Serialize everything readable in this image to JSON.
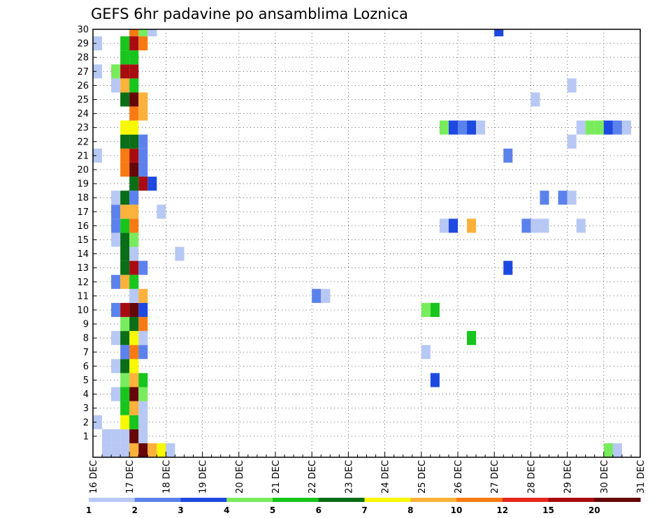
{
  "chart_data": {
    "type": "heatmap",
    "title": "GEFS 6hr padavine po ansamblima Loznica",
    "xlabel": "",
    "ylabel": "",
    "x_ticks": [
      "16 DEC",
      "17 DEC",
      "18 DEC",
      "19 DEC",
      "20 DEC",
      "21 DEC",
      "22 DEC",
      "23 DEC",
      "24 DEC",
      "25 DEC",
      "26 DEC",
      "27 DEC",
      "28 DEC",
      "29 DEC",
      "30 DEC",
      "31 DEC"
    ],
    "x_range": [
      "16 DEC 00Z",
      "31 DEC 00Z"
    ],
    "time_step_hours": 6,
    "y_ticks": [
      "1",
      "2",
      "3",
      "4",
      "5",
      "6",
      "7",
      "8",
      "9",
      "10",
      "11",
      "12",
      "13",
      "14",
      "15",
      "16",
      "17",
      "18",
      "19",
      "20",
      "21",
      "22",
      "23",
      "24",
      "25",
      "26",
      "27",
      "28",
      "29",
      "30"
    ],
    "y_range": [
      0,
      30
    ],
    "grid": true,
    "grid_style": "dotted",
    "colorbar": {
      "position": "bottom",
      "labels": [
        "1",
        "2",
        "3",
        "4",
        "5",
        "6",
        "7",
        "8",
        "10",
        "12",
        "15",
        "20"
      ],
      "colors": [
        "#b7c8f5",
        "#5b82ec",
        "#1e49e0",
        "#79ec5d",
        "#17c51c",
        "#0a6e16",
        "#f8f800",
        "#fbb13a",
        "#f87a13",
        "#e5271a",
        "#a80c10",
        "#650607"
      ]
    },
    "cells": [
      {
        "t": 1,
        "m": 0,
        "v": 1.5
      },
      {
        "t": 2,
        "m": 0,
        "v": 1.5
      },
      {
        "t": 3,
        "m": 0,
        "v": 1.5
      },
      {
        "t": 4,
        "m": 0,
        "v": 9
      },
      {
        "t": 5,
        "m": 0,
        "v": 30
      },
      {
        "t": 6,
        "m": 0,
        "v": 9
      },
      {
        "t": 7,
        "m": 0,
        "v": 7
      },
      {
        "t": 8,
        "m": 0,
        "v": 1.5
      },
      {
        "t": 1,
        "m": 1,
        "v": 1.5
      },
      {
        "t": 2,
        "m": 1,
        "v": 1.5
      },
      {
        "t": 3,
        "m": 1,
        "v": 1.5
      },
      {
        "t": 4,
        "m": 1,
        "v": 25
      },
      {
        "t": 5,
        "m": 1,
        "v": 1.5
      },
      {
        "t": 0,
        "m": 2,
        "v": 1.5
      },
      {
        "t": 3,
        "m": 2,
        "v": 7.5
      },
      {
        "t": 4,
        "m": 2,
        "v": 5.5
      },
      {
        "t": 5,
        "m": 2,
        "v": 1.5
      },
      {
        "t": 3,
        "m": 3,
        "v": 5.5
      },
      {
        "t": 4,
        "m": 3,
        "v": 9
      },
      {
        "t": 5,
        "m": 3,
        "v": 1.5
      },
      {
        "t": 2,
        "m": 4,
        "v": 1.5
      },
      {
        "t": 3,
        "m": 4,
        "v": 5.5
      },
      {
        "t": 4,
        "m": 4,
        "v": 25
      },
      {
        "t": 5,
        "m": 4,
        "v": 4.5
      },
      {
        "t": 3,
        "m": 5,
        "v": 4.5
      },
      {
        "t": 4,
        "m": 5,
        "v": 9
      },
      {
        "t": 5,
        "m": 5,
        "v": 5.5
      },
      {
        "t": 2,
        "m": 6,
        "v": 1.5
      },
      {
        "t": 3,
        "m": 6,
        "v": 6.5
      },
      {
        "t": 4,
        "m": 6,
        "v": 7.5
      },
      {
        "t": 3,
        "m": 7,
        "v": 2.5
      },
      {
        "t": 4,
        "m": 7,
        "v": 11
      },
      {
        "t": 5,
        "m": 7,
        "v": 2.5
      },
      {
        "t": 2,
        "m": 8,
        "v": 1.5
      },
      {
        "t": 3,
        "m": 8,
        "v": 6.5
      },
      {
        "t": 4,
        "m": 8,
        "v": 7.5
      },
      {
        "t": 5,
        "m": 8,
        "v": 1.5
      },
      {
        "t": 3,
        "m": 9,
        "v": 4.5
      },
      {
        "t": 4,
        "m": 9,
        "v": 6.5
      },
      {
        "t": 5,
        "m": 9,
        "v": 11
      },
      {
        "t": 2,
        "m": 10,
        "v": 2.5
      },
      {
        "t": 3,
        "m": 10,
        "v": 17
      },
      {
        "t": 4,
        "m": 10,
        "v": 25
      },
      {
        "t": 5,
        "m": 10,
        "v": 3.5
      },
      {
        "t": 4,
        "m": 11,
        "v": 1.5
      },
      {
        "t": 5,
        "m": 11,
        "v": 9
      },
      {
        "t": 2,
        "m": 12,
        "v": 2.5
      },
      {
        "t": 3,
        "m": 12,
        "v": 9
      },
      {
        "t": 4,
        "m": 12,
        "v": 5.5
      },
      {
        "t": 3,
        "m": 13,
        "v": 6.5
      },
      {
        "t": 4,
        "m": 13,
        "v": 17
      },
      {
        "t": 5,
        "m": 13,
        "v": 2.5
      },
      {
        "t": 3,
        "m": 14,
        "v": 6.5
      },
      {
        "t": 4,
        "m": 14,
        "v": 1.5
      },
      {
        "t": 2,
        "m": 15,
        "v": 1.5
      },
      {
        "t": 3,
        "m": 15,
        "v": 6.5
      },
      {
        "t": 4,
        "m": 15,
        "v": 4.5
      },
      {
        "t": 2,
        "m": 16,
        "v": 2.5
      },
      {
        "t": 3,
        "m": 16,
        "v": 5.5
      },
      {
        "t": 4,
        "m": 16,
        "v": 11
      },
      {
        "t": 2,
        "m": 17,
        "v": 2.5
      },
      {
        "t": 3,
        "m": 17,
        "v": 9
      },
      {
        "t": 4,
        "m": 17,
        "v": 9
      },
      {
        "t": 2,
        "m": 18,
        "v": 1.5
      },
      {
        "t": 3,
        "m": 18,
        "v": 6.5
      },
      {
        "t": 4,
        "m": 18,
        "v": 2.5
      },
      {
        "t": 4,
        "m": 19,
        "v": 6.5
      },
      {
        "t": 5,
        "m": 19,
        "v": 17
      },
      {
        "t": 6,
        "m": 19,
        "v": 3.5
      },
      {
        "t": 3,
        "m": 20,
        "v": 11
      },
      {
        "t": 4,
        "m": 20,
        "v": 25
      },
      {
        "t": 5,
        "m": 20,
        "v": 2.5
      },
      {
        "t": 0,
        "m": 21,
        "v": 1.5
      },
      {
        "t": 3,
        "m": 21,
        "v": 11
      },
      {
        "t": 4,
        "m": 21,
        "v": 17
      },
      {
        "t": 5,
        "m": 21,
        "v": 2.5
      },
      {
        "t": 3,
        "m": 22,
        "v": 6.5
      },
      {
        "t": 4,
        "m": 22,
        "v": 6.5
      },
      {
        "t": 5,
        "m": 22,
        "v": 2.5
      },
      {
        "t": 3,
        "m": 23,
        "v": 7.5
      },
      {
        "t": 4,
        "m": 23,
        "v": 7.5
      },
      {
        "t": 4,
        "m": 24,
        "v": 11
      },
      {
        "t": 5,
        "m": 24,
        "v": 9
      },
      {
        "t": 3,
        "m": 25,
        "v": 6.5
      },
      {
        "t": 4,
        "m": 25,
        "v": 25
      },
      {
        "t": 5,
        "m": 25,
        "v": 9
      },
      {
        "t": 2,
        "m": 26,
        "v": 1.5
      },
      {
        "t": 3,
        "m": 26,
        "v": 9
      },
      {
        "t": 4,
        "m": 26,
        "v": 5.5
      },
      {
        "t": 0,
        "m": 27,
        "v": 1.5
      },
      {
        "t": 2,
        "m": 27,
        "v": 4.5
      },
      {
        "t": 3,
        "m": 27,
        "v": 17
      },
      {
        "t": 4,
        "m": 27,
        "v": 17
      },
      {
        "t": 3,
        "m": 28,
        "v": 5.5
      },
      {
        "t": 4,
        "m": 28,
        "v": 5.5
      },
      {
        "t": 0,
        "m": 29,
        "v": 1.5
      },
      {
        "t": 3,
        "m": 29,
        "v": 5.5
      },
      {
        "t": 4,
        "m": 29,
        "v": 17
      },
      {
        "t": 5,
        "m": 29,
        "v": 11
      },
      {
        "t": 4,
        "m": 30,
        "v": 11
      },
      {
        "t": 5,
        "m": 30,
        "v": 4.5
      },
      {
        "t": 6,
        "m": 30,
        "v": 1.5
      },
      {
        "t": 7,
        "m": 17,
        "v": 1.5
      },
      {
        "t": 9,
        "m": 14,
        "v": 1.5
      },
      {
        "t": 24,
        "m": 11,
        "v": 2.5
      },
      {
        "t": 25,
        "m": 11,
        "v": 1.5
      },
      {
        "t": 36,
        "m": 7,
        "v": 1.5
      },
      {
        "t": 36,
        "m": 10,
        "v": 4.5
      },
      {
        "t": 37,
        "m": 10,
        "v": 5.5
      },
      {
        "t": 37,
        "m": 5,
        "v": 3.5
      },
      {
        "t": 38,
        "m": 23,
        "v": 4.5
      },
      {
        "t": 39,
        "m": 23,
        "v": 3.5
      },
      {
        "t": 40,
        "m": 23,
        "v": 2.5
      },
      {
        "t": 41,
        "m": 23,
        "v": 3.5
      },
      {
        "t": 42,
        "m": 23,
        "v": 1.5
      },
      {
        "t": 38,
        "m": 16,
        "v": 1.5
      },
      {
        "t": 39,
        "m": 16,
        "v": 3.5
      },
      {
        "t": 41,
        "m": 16,
        "v": 9
      },
      {
        "t": 41,
        "m": 8,
        "v": 5.5
      },
      {
        "t": 44,
        "m": 30,
        "v": 3.5
      },
      {
        "t": 45,
        "m": 13,
        "v": 3.5
      },
      {
        "t": 45,
        "m": 21,
        "v": 2.5
      },
      {
        "t": 47,
        "m": 16,
        "v": 2.5
      },
      {
        "t": 48,
        "m": 16,
        "v": 1.5
      },
      {
        "t": 49,
        "m": 16,
        "v": 1.5
      },
      {
        "t": 48,
        "m": 25,
        "v": 1.5
      },
      {
        "t": 49,
        "m": 18,
        "v": 2.5
      },
      {
        "t": 51,
        "m": 18,
        "v": 2.5
      },
      {
        "t": 52,
        "m": 18,
        "v": 1.5
      },
      {
        "t": 52,
        "m": 22,
        "v": 1.5
      },
      {
        "t": 52,
        "m": 26,
        "v": 1.5
      },
      {
        "t": 53,
        "m": 16,
        "v": 1.5
      },
      {
        "t": 53,
        "m": 23,
        "v": 1.5
      },
      {
        "t": 54,
        "m": 23,
        "v": 4.5
      },
      {
        "t": 55,
        "m": 23,
        "v": 4.5
      },
      {
        "t": 56,
        "m": 23,
        "v": 3.5
      },
      {
        "t": 57,
        "m": 23,
        "v": 2.5
      },
      {
        "t": 58,
        "m": 23,
        "v": 1.5
      },
      {
        "t": 56,
        "m": 0,
        "v": 4.5
      },
      {
        "t": 57,
        "m": 0,
        "v": 1.5
      }
    ]
  }
}
